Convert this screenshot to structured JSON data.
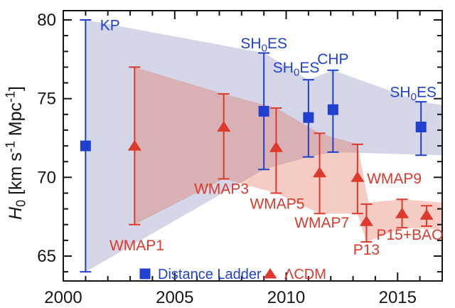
{
  "chart_data": {
    "type": "scatter",
    "title": "",
    "xlabel": "",
    "ylabel": "H0 [km s-1 Mpc-1]",
    "ylabel_segments": [
      {
        "t": "H",
        "i": true
      },
      {
        "t": "0",
        "s": "sub"
      },
      {
        "t": " [km s"
      },
      {
        "t": "-1",
        "s": "sup"
      },
      {
        "t": " Mpc"
      },
      {
        "t": "-1",
        "s": "sup"
      },
      {
        "t": "]"
      }
    ],
    "x_axis": {
      "min": 2000,
      "max": 2017,
      "major_ticks": [
        2000,
        2005,
        2010,
        2015
      ],
      "major_labels": [
        "2000",
        "2005",
        "2010",
        "2015"
      ],
      "minor_ticks": [
        2001,
        2002,
        2003,
        2004,
        2006,
        2007,
        2008,
        2009,
        2011,
        2012,
        2013,
        2014,
        2016
      ]
    },
    "y_axis": {
      "min": 63.5,
      "max": 80.6,
      "major_ticks": [
        65,
        70,
        75,
        80
      ],
      "major_labels": [
        "65",
        "70",
        "75",
        "80"
      ],
      "minor_ticks": [
        64,
        66,
        67,
        68,
        69,
        71,
        72,
        73,
        74,
        76,
        77,
        78,
        79
      ]
    },
    "grid": false,
    "series": [
      {
        "name": "Distance Ladder",
        "marker": "square",
        "color": "#2040cf",
        "points": [
          {
            "label": "KP",
            "year": 2001.0,
            "value": 72.0,
            "err_up": 8.0,
            "err_down": 8.0
          },
          {
            "label": "SH0ES",
            "year": 2009.0,
            "value": 74.2,
            "err_up": 3.7,
            "err_down": 3.7
          },
          {
            "label": "SH0ES",
            "year": 2011.0,
            "value": 73.8,
            "err_up": 2.4,
            "err_down": 2.5
          },
          {
            "label": "CHP",
            "year": 2012.1,
            "value": 74.3,
            "err_up": 2.5,
            "err_down": 2.7
          },
          {
            "label": "SH0ES",
            "year": 2016.05,
            "value": 73.2,
            "err_up": 1.6,
            "err_down": 1.8
          }
        ],
        "band_outline": [
          [
            2001,
            80.0
          ],
          [
            2009,
            77.9
          ],
          [
            2011,
            76.2
          ],
          [
            2012.1,
            76.8
          ],
          [
            2016.05,
            74.8
          ],
          [
            2017,
            74.6
          ],
          [
            2017,
            71.4
          ],
          [
            2012.1,
            71.6
          ],
          [
            2011,
            71.3
          ],
          [
            2009,
            70.5
          ],
          [
            2001,
            64.0
          ]
        ],
        "band_color": "rgba(125,128,182,0.32)"
      },
      {
        "name": "ΛCDM",
        "marker": "triangle",
        "color": "#dd392c",
        "points": [
          {
            "label": "WMAP1",
            "year": 2003.2,
            "value": 72.0,
            "err_up": 5.0,
            "err_down": 5.0
          },
          {
            "label": "WMAP3",
            "year": 2007.2,
            "value": 73.2,
            "err_up": 2.1,
            "err_down": 3.3
          },
          {
            "label": "WMAP5",
            "year": 2009.55,
            "value": 71.9,
            "err_up": 2.5,
            "err_down": 2.9
          },
          {
            "label": "WMAP7",
            "year": 2011.5,
            "value": 70.3,
            "err_up": 2.5,
            "err_down": 2.6
          },
          {
            "label": "WMAP9",
            "year": 2013.2,
            "value": 70.0,
            "err_up": 2.1,
            "err_down": 2.3
          },
          {
            "label": "P13",
            "year": 2013.6,
            "value": 67.2,
            "err_up": 1.1,
            "err_down": 1.3
          },
          {
            "label": "P15",
            "year": 2015.2,
            "value": 67.7,
            "err_up": 0.9,
            "err_down": 0.9
          },
          {
            "label": "BAO",
            "year": 2016.3,
            "value": 67.6,
            "err_up": 0.6,
            "err_down": 0.7
          }
        ],
        "band_outline": [
          [
            2003.2,
            77.0
          ],
          [
            2007.2,
            75.3
          ],
          [
            2009.55,
            74.4
          ],
          [
            2011.5,
            72.8
          ],
          [
            2013.2,
            72.1
          ],
          [
            2013.7,
            68.4
          ],
          [
            2015.2,
            68.6
          ],
          [
            2017,
            68.4
          ],
          [
            2017,
            66.7
          ],
          [
            2015.2,
            66.8
          ],
          [
            2013.6,
            65.9
          ],
          [
            2013.2,
            67.7
          ],
          [
            2011.5,
            67.7
          ],
          [
            2009.55,
            69.0
          ],
          [
            2007.2,
            69.9
          ],
          [
            2003.2,
            67.0
          ]
        ],
        "band_color": "rgba(228,100,72,0.32)"
      }
    ],
    "annotations": [
      {
        "series": 0,
        "x": 2002.1,
        "y": 79.35,
        "segs": [
          {
            "t": "KP"
          }
        ]
      },
      {
        "series": 0,
        "x": 2009.0,
        "y": 78.2,
        "segs": [
          {
            "t": "SH"
          },
          {
            "t": "0",
            "s": "sub"
          },
          {
            "t": "ES"
          }
        ]
      },
      {
        "series": 0,
        "x": 2010.45,
        "y": 76.65,
        "segs": [
          {
            "t": "SH"
          },
          {
            "t": "0",
            "s": "sub"
          },
          {
            "t": "ES"
          }
        ]
      },
      {
        "series": 0,
        "x": 2012.1,
        "y": 77.2,
        "segs": [
          {
            "t": "CHP"
          }
        ]
      },
      {
        "series": 0,
        "x": 2015.7,
        "y": 75.1,
        "segs": [
          {
            "t": "SH"
          },
          {
            "t": "0",
            "s": "sub"
          },
          {
            "t": "ES"
          }
        ]
      },
      {
        "series": 1,
        "x": 2003.3,
        "y": 65.35,
        "segs": [
          {
            "t": "WMAP1"
          }
        ]
      },
      {
        "series": 1,
        "x": 2007.1,
        "y": 68.95,
        "segs": [
          {
            "t": "WMAP3"
          }
        ]
      },
      {
        "series": 1,
        "x": 2009.6,
        "y": 68.0,
        "segs": [
          {
            "t": "WMAP5"
          }
        ]
      },
      {
        "series": 1,
        "x": 2011.6,
        "y": 66.8,
        "segs": [
          {
            "t": "WMAP7"
          }
        ]
      },
      {
        "series": 1,
        "x": 2014.85,
        "y": 69.6,
        "segs": [
          {
            "t": "WMAP9"
          }
        ]
      },
      {
        "series": 1,
        "x": 2013.6,
        "y": 65.1,
        "segs": [
          {
            "t": "P13"
          }
        ]
      },
      {
        "series": 1,
        "x": 2015.55,
        "y": 66.05,
        "segs": [
          {
            "t": "P15+BAO"
          }
        ]
      }
    ],
    "legend": {
      "position": "bottom-inside",
      "items": [
        {
          "label": "Distance Ladder",
          "marker": "square",
          "series": 0
        },
        {
          "label": "ΛCDM",
          "marker": "triangle",
          "series": 1
        }
      ]
    },
    "axis_color": "#161616"
  }
}
